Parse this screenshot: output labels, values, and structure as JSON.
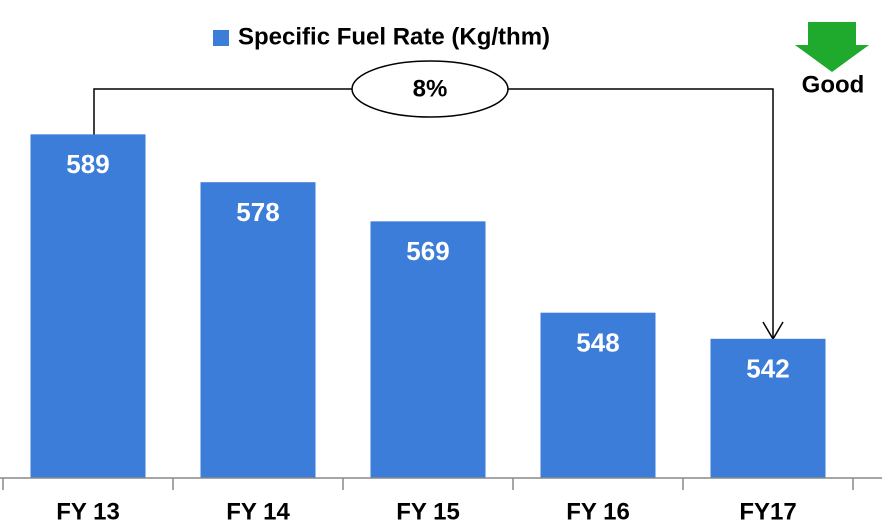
{
  "chart_data": {
    "type": "bar",
    "legend": "Specific Fuel Rate (Kg/thm)",
    "categories": [
      "FY 13",
      "FY 14",
      "FY 15",
      "FY 16",
      "FY17"
    ],
    "values": [
      589,
      578,
      569,
      548,
      542
    ],
    "color": "#3b7dd8",
    "ylim": [
      510,
      600
    ],
    "annotations": {
      "change": "8%",
      "direction": "Good"
    }
  }
}
